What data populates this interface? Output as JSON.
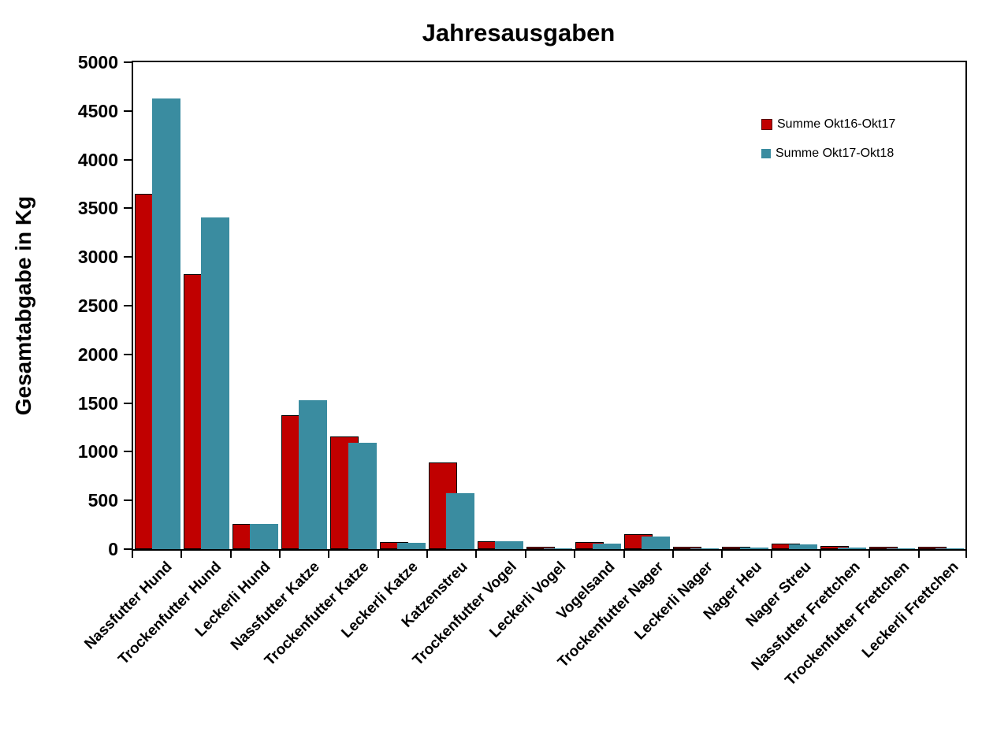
{
  "chart_data": {
    "type": "bar",
    "title": "Jahresausgaben",
    "ylabel": "Gesamtabgabe in Kg",
    "xlabel": "",
    "ylim": [
      0,
      5000
    ],
    "ytick_step": 500,
    "grid": false,
    "legend_position": "inside-top-right",
    "plot_border": true,
    "categories": [
      "Nassfutter Hund",
      "Trockenfutter Hund",
      "Leckerli Hund",
      "Nassfutter Katze",
      "Trockenfutter Katze",
      "Leckerli Katze",
      "Katzenstreu",
      "Trockenfutter Vogel",
      "Leckerli Vogel",
      "Vogelsand",
      "Trockenfutter Nager",
      "Leckerli Nager",
      "Nager Heu",
      "Nager Streu",
      "Nassfutter Frettchen",
      "Trockenfutter Frettchen",
      "Leckerli Frettchen"
    ],
    "series": [
      {
        "name": "Summe Okt16-Okt17",
        "color": "#C00000",
        "outline_color": "#000000",
        "values": [
          3650,
          2820,
          260,
          1375,
          1160,
          75,
          890,
          82,
          8,
          76,
          152,
          8,
          28,
          56,
          35,
          14,
          12
        ]
      },
      {
        "name": "Summe Okt17-Okt18",
        "color": "#3A8CA0",
        "outline_color": null,
        "values": [
          4625,
          3410,
          258,
          1530,
          1090,
          62,
          572,
          80,
          5,
          55,
          130,
          4,
          19,
          50,
          14,
          8,
          6
        ]
      }
    ],
    "colors": {
      "axis": "#000000",
      "text": "#000000",
      "background": "#FFFFFF"
    }
  }
}
